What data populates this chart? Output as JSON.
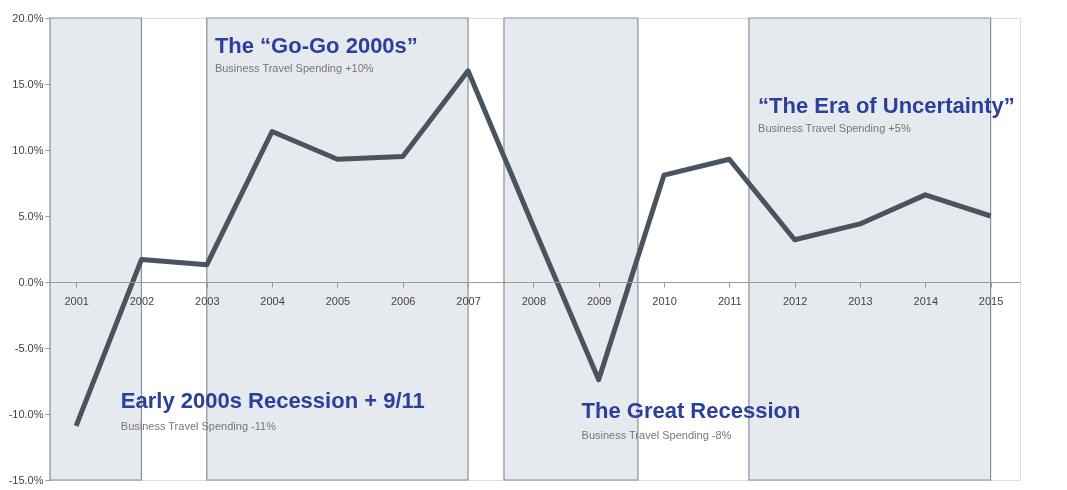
{
  "chart_data": {
    "type": "line",
    "x": [
      2001,
      2002,
      2003,
      2004,
      2005,
      2006,
      2007,
      2008,
      2009,
      2010,
      2011,
      2012,
      2013,
      2014,
      2015
    ],
    "series": [
      {
        "color": "#4a545e",
        "values": [
          -10.9,
          1.7,
          1.3,
          11.4,
          9.3,
          9.5,
          16.0,
          4.2,
          -7.4,
          8.1,
          9.3,
          3.2,
          4.4,
          6.6,
          5.0
        ]
      }
    ],
    "xlim": [
      2000.6,
      2015.45
    ],
    "xticks": [
      2001,
      2002,
      2003,
      2004,
      2005,
      2006,
      2007,
      2008,
      2009,
      2010,
      2011,
      2012,
      2013,
      2014,
      2015
    ],
    "ylim": [
      -15,
      20
    ],
    "yticks": [
      {
        "value": -15,
        "label": "-15.0%"
      },
      {
        "value": -10,
        "label": "-10.0%"
      },
      {
        "value": -5,
        "label": "-5.0%"
      },
      {
        "value": 0,
        "label": "0.0%"
      },
      {
        "value": 5,
        "label": "5.0%"
      },
      {
        "value": 10,
        "label": "10.0%"
      },
      {
        "value": 15,
        "label": "15.0%"
      },
      {
        "value": 20,
        "label": "20.0%"
      }
    ],
    "bands": [
      {
        "axis": "x",
        "from": 2000.6,
        "to": 2002,
        "color": "#e6e9ed"
      },
      {
        "axis": "x",
        "from": 2003,
        "to": 2007,
        "color": "#e6e9ed"
      },
      {
        "axis": "x",
        "from": 2007.55,
        "to": 2009.6,
        "color": "#e6e9ed"
      },
      {
        "axis": "x",
        "from": 2011.3,
        "to": 2015,
        "color": "#e6e9ed"
      }
    ],
    "annotations": [
      "The “Go-Go 2000s”",
      "Business Travel Spending +10%",
      "“The Era of Uncertainty”",
      "Business Travel Spending +5%",
      "Early 2000s Recession + 9/11",
      "Business Travel Spending -11%",
      "The Great Recession",
      "Business Travel Spending -8%"
    ],
    "grid": false,
    "legend": false,
    "marker": "none",
    "line_style": "solid"
  }
}
